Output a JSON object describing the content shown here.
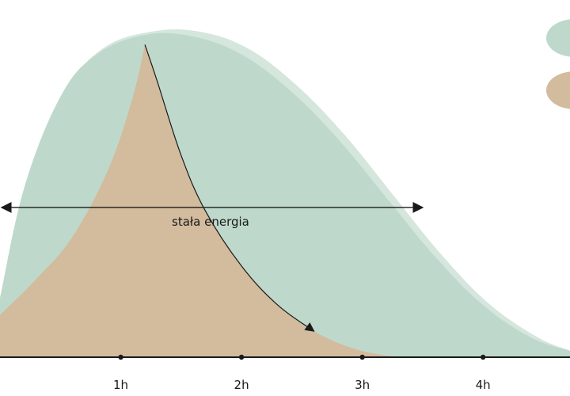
{
  "chart_data": {
    "type": "area",
    "title": "",
    "xlabel": "",
    "ylabel": "",
    "x_ticks": [
      "1h",
      "2h",
      "3h",
      "4h"
    ],
    "x_unit": "h",
    "xlim": [
      0.0,
      4.72
    ],
    "ylim": [
      0,
      1
    ],
    "grid": false,
    "legend": "top-right",
    "series": [
      {
        "color": "#bed9cb",
        "x": [
          0.0,
          0.2,
          0.5,
          0.8,
          1.2,
          1.6,
          2.0,
          2.4,
          2.8,
          3.2,
          3.6,
          4.0,
          4.4,
          4.72
        ],
        "y": [
          0.18,
          0.52,
          0.8,
          0.93,
          0.99,
          0.985,
          0.93,
          0.82,
          0.67,
          0.49,
          0.31,
          0.16,
          0.06,
          0.02
        ]
      },
      {
        "color": "#d3bb9d",
        "x": [
          0.0,
          0.3,
          0.6,
          0.9,
          1.1,
          1.2,
          1.3,
          1.5,
          1.7,
          2.0,
          2.3,
          2.6,
          2.9,
          3.2,
          3.5
        ],
        "y": [
          0.13,
          0.24,
          0.37,
          0.58,
          0.8,
          0.96,
          0.85,
          0.62,
          0.45,
          0.28,
          0.16,
          0.08,
          0.03,
          0.005,
          0.0
        ]
      }
    ],
    "annotations": [
      {
        "text": "stała energia",
        "type": "double-arrow",
        "x_range": [
          0.0,
          3.5
        ],
        "y": 0.46
      }
    ]
  },
  "colors": {
    "green": "#bed9cb",
    "green_light": "#d5e6dc",
    "tan": "#d3bb9d",
    "ink": "#1a1a1a"
  },
  "legend": {
    "items": [
      {
        "color": "#bed9cb"
      },
      {
        "color": "#d3bb9d"
      }
    ]
  }
}
